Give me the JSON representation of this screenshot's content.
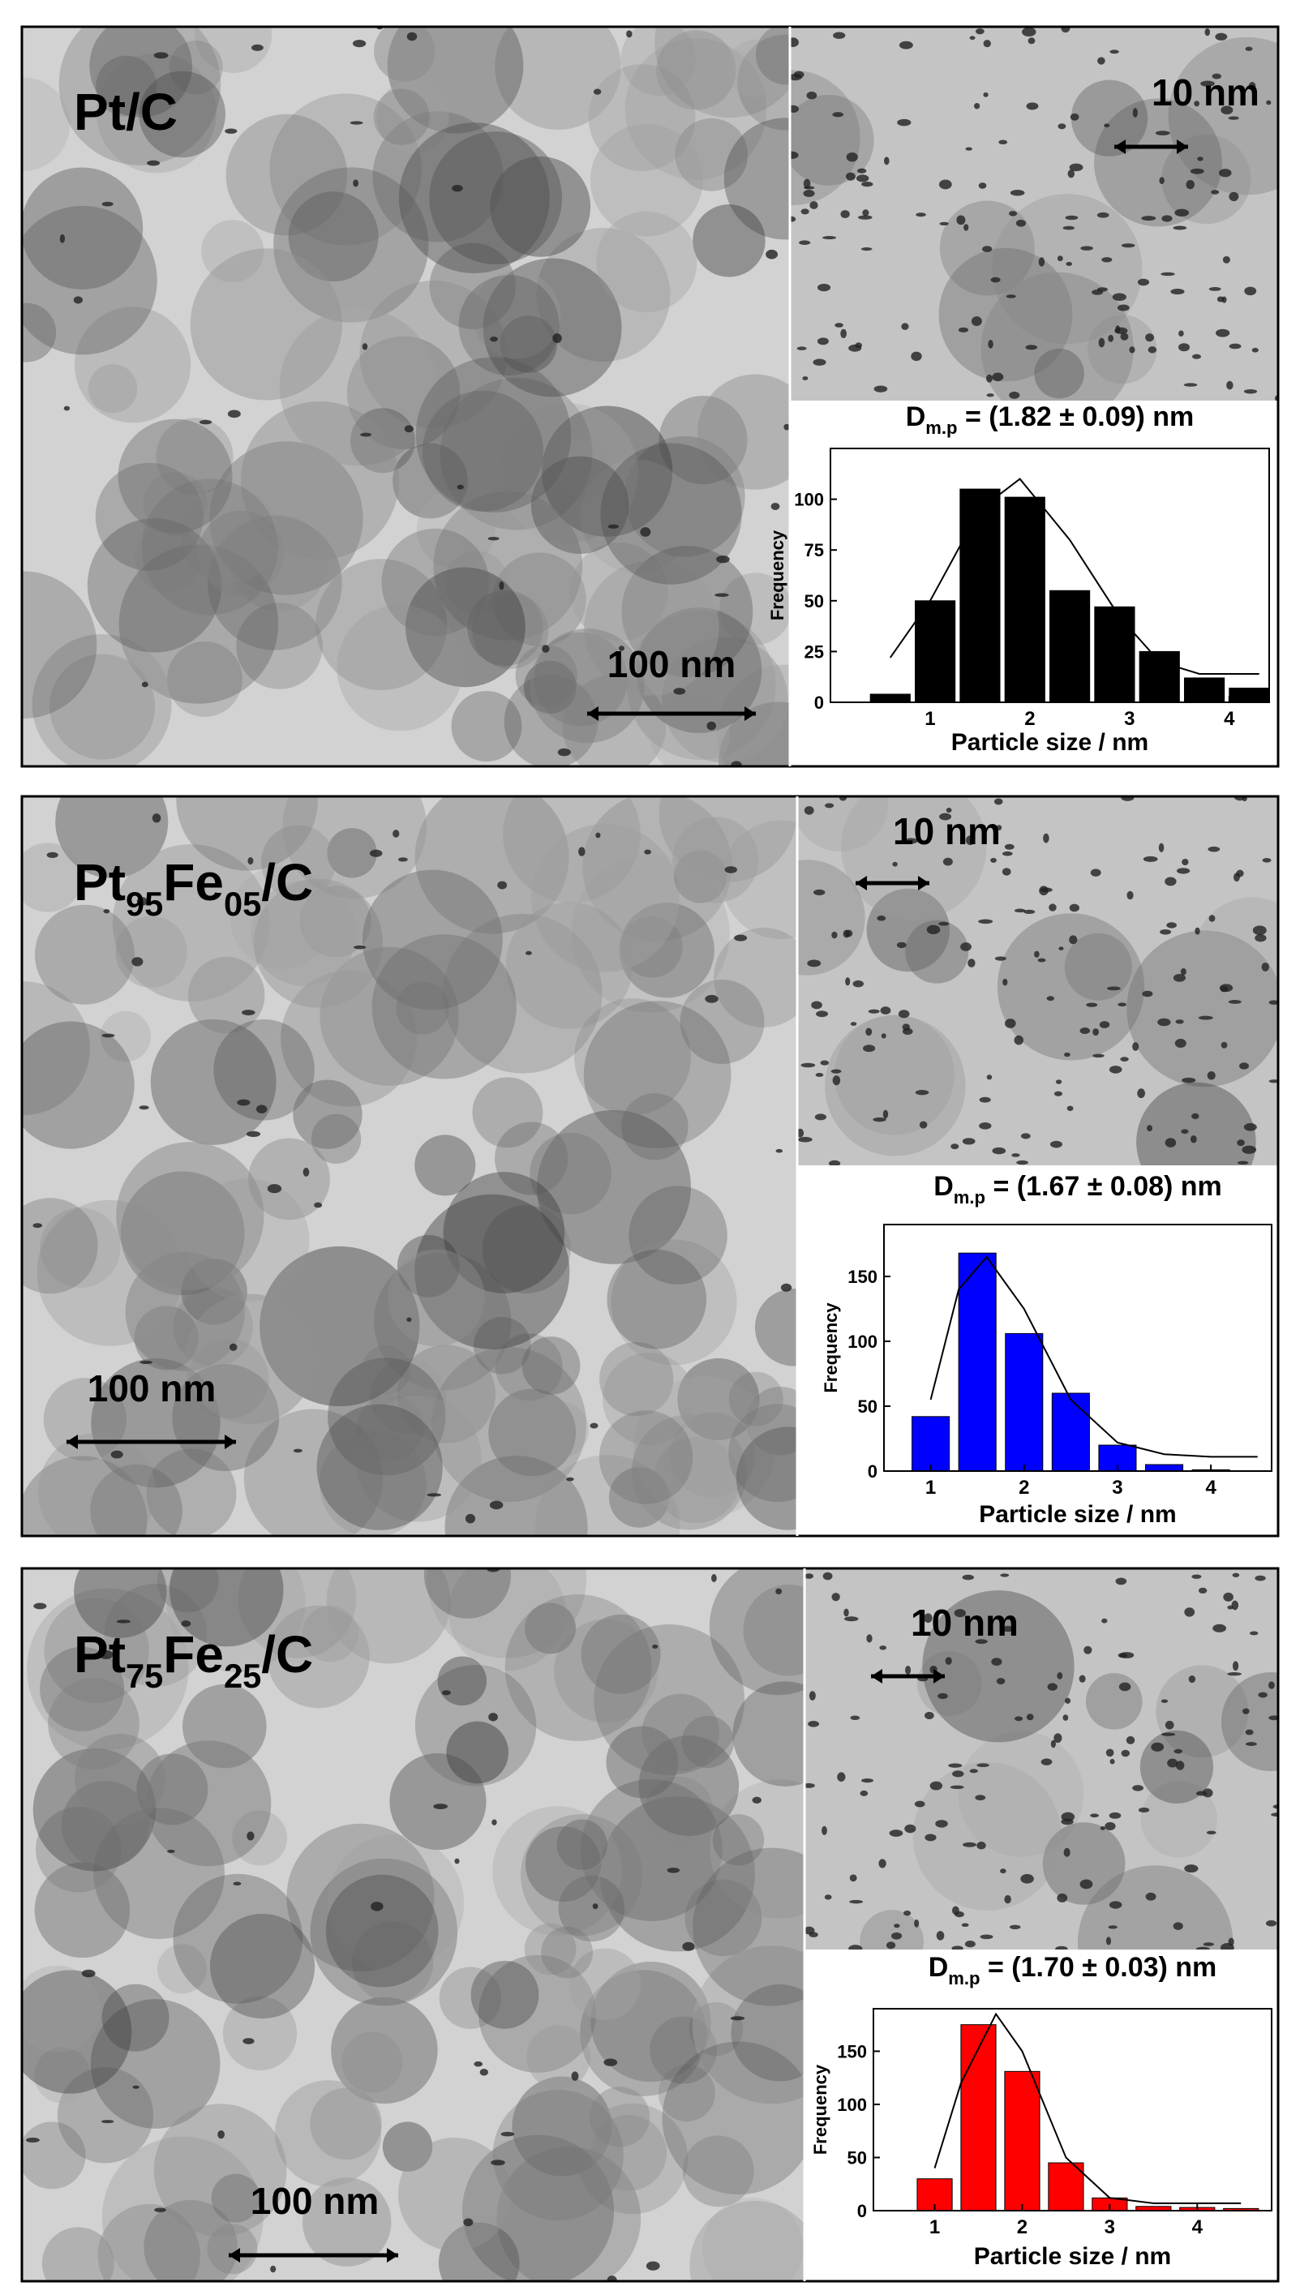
{
  "panels": [
    {
      "label": [
        {
          "text": "Pt/C"
        }
      ],
      "scale_bar_small": "10 nm",
      "scale_bar_large": "100 nm"
    },
    {
      "label": [
        {
          "text": "Pt"
        },
        {
          "text": "95",
          "sub": true
        },
        {
          "text": "Fe"
        },
        {
          "text": "05",
          "sub": true
        },
        {
          "text": "/C"
        }
      ],
      "scale_bar_small": "10 nm",
      "scale_bar_large": "100 nm"
    },
    {
      "label": [
        {
          "text": "Pt"
        },
        {
          "text": "75",
          "sub": true
        },
        {
          "text": "Fe"
        },
        {
          "text": "25",
          "sub": true
        },
        {
          "text": "/C"
        }
      ],
      "scale_bar_small": "10 nm",
      "scale_bar_large": "100 nm"
    }
  ],
  "chart_data": [
    {
      "type": "bar",
      "title": [
        {
          "text": "D"
        },
        {
          "text": "m.p",
          "sub": true
        },
        {
          "text": " = (1.82 ± 0.09) nm"
        }
      ],
      "x_label": "Particle size / nm",
      "y_label": "Frequency",
      "x": [
        0.6,
        1.05,
        1.5,
        1.95,
        2.4,
        2.85,
        3.3,
        3.75,
        4.2
      ],
      "values": [
        4,
        50,
        105,
        101,
        55,
        47,
        25,
        12,
        7
      ],
      "color": "#000000",
      "fit": {
        "x": [
          0.6,
          1,
          1.5,
          1.9,
          2.4,
          2.9,
          3.3,
          3.7,
          4.3
        ],
        "values": [
          22,
          50,
          95,
          110,
          80,
          42,
          20,
          14,
          14
        ]
      },
      "xlim": [
        0,
        4.4
      ],
      "ylim": [
        0,
        125
      ],
      "xticks": [
        1,
        2,
        3,
        4
      ],
      "yticks": [
        0,
        25,
        50,
        75,
        100
      ]
    },
    {
      "type": "bar",
      "title": [
        {
          "text": "D"
        },
        {
          "text": "m.p",
          "sub": true
        },
        {
          "text": " = (1.67 ± 0.08) nm"
        }
      ],
      "x_label": "Particle size / nm",
      "y_label": "Frequency",
      "x": [
        1,
        1.5,
        2,
        2.5,
        3,
        3.5,
        4
      ],
      "values": [
        42,
        168,
        106,
        60,
        20,
        5,
        1
      ],
      "color": "#0000ff",
      "fit": {
        "x": [
          1,
          1.3,
          1.6,
          2,
          2.5,
          3,
          3.5,
          4,
          4.5
        ],
        "values": [
          55,
          140,
          165,
          125,
          55,
          22,
          13,
          11,
          11
        ]
      },
      "xlim": [
        0.5,
        4.65
      ],
      "ylim": [
        0,
        190
      ],
      "xticks": [
        1,
        2,
        3,
        4
      ],
      "yticks": [
        0,
        50,
        100,
        150
      ]
    },
    {
      "type": "bar",
      "title": [
        {
          "text": "D"
        },
        {
          "text": "m.p",
          "sub": true
        },
        {
          "text": " = (1.70 ± 0.03) nm"
        }
      ],
      "x_label": "Particle size / nm",
      "y_label": "Frequency",
      "x": [
        1,
        1.5,
        2,
        2.5,
        3,
        3.5,
        4,
        4.5
      ],
      "values": [
        30,
        175,
        131,
        45,
        12,
        4,
        3,
        2
      ],
      "color": "#ff0000",
      "fit": {
        "x": [
          1,
          1.3,
          1.7,
          2,
          2.5,
          3,
          3.5,
          4,
          4.5
        ],
        "values": [
          40,
          120,
          185,
          150,
          50,
          12,
          7,
          7,
          7
        ]
      },
      "xlim": [
        0.3,
        4.85
      ],
      "ylim": [
        0,
        190
      ],
      "xticks": [
        1,
        2,
        3,
        4
      ],
      "yticks": [
        0,
        50,
        100,
        150
      ]
    }
  ]
}
